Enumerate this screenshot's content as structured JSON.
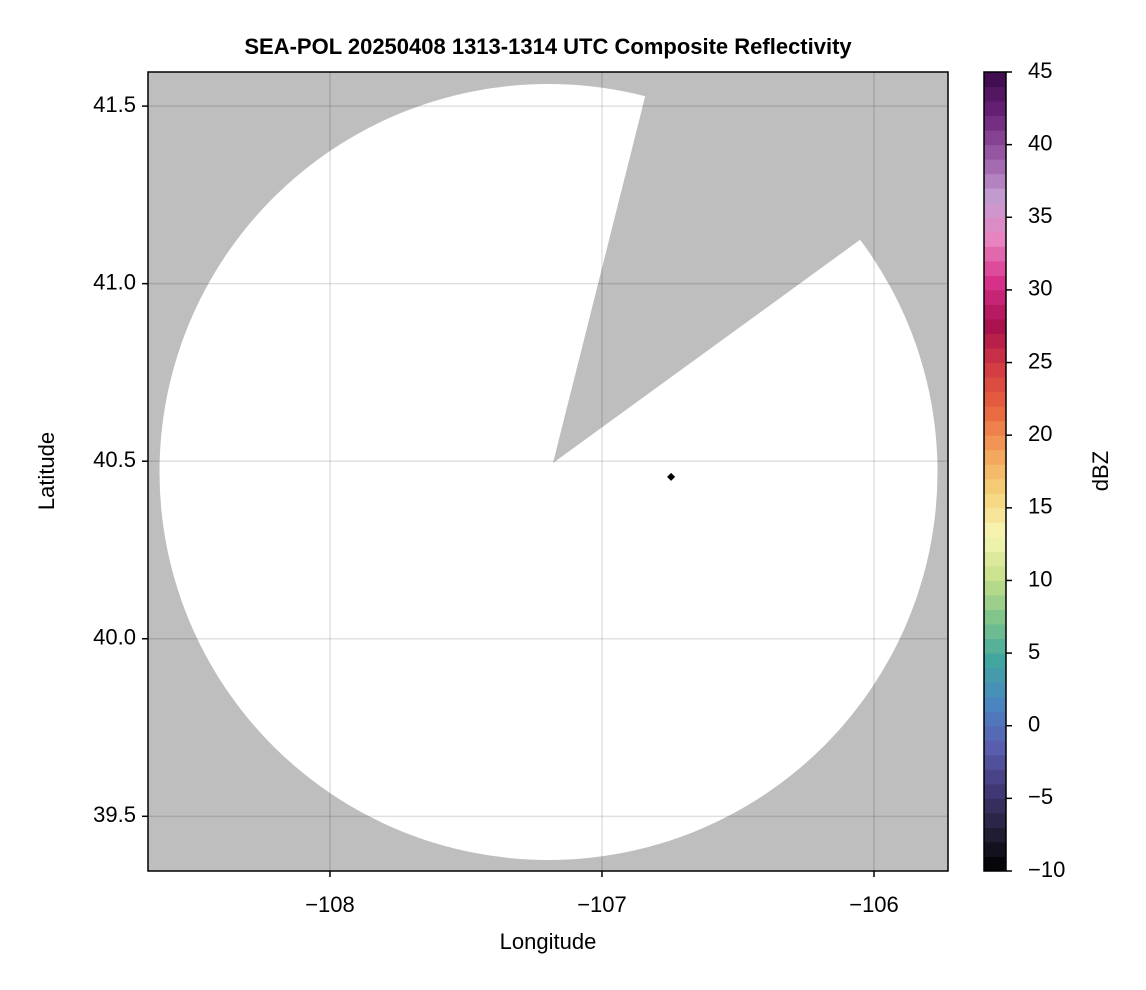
{
  "chart_data": {
    "type": "map",
    "title": "SEA-POL 20250408 1313-1314 UTC Composite Reflectivity",
    "xlabel": "Longitude",
    "ylabel": "Latitude",
    "xlim": [
      -108.669,
      -105.728
    ],
    "ylim": [
      39.346,
      41.596
    ],
    "xticks": [
      {
        "value": -108,
        "label": "−108"
      },
      {
        "value": -107,
        "label": "−107"
      },
      {
        "value": -106,
        "label": "−106"
      }
    ],
    "yticks": [
      {
        "value": 39.5,
        "label": "39.5"
      },
      {
        "value": 40.0,
        "label": "40.0"
      },
      {
        "value": 40.5,
        "label": "40.5"
      },
      {
        "value": 41.0,
        "label": "41.0"
      },
      {
        "value": 41.5,
        "label": "41.5"
      }
    ],
    "grid": true,
    "points": {
      "x": [
        -106.746
      ],
      "y": [
        40.456
      ],
      "color": "#000000"
    },
    "colorbar": {
      "label": "dBZ",
      "lim": [
        -10,
        45
      ],
      "ticks": [
        {
          "value": -10,
          "label": "−10"
        },
        {
          "value": -5,
          "label": "−5"
        },
        0,
        5,
        10,
        15,
        20,
        25,
        30,
        35,
        40,
        45
      ],
      "colors": [
        "#000000",
        "#25203a",
        "#433b7a",
        "#5a5fb0",
        "#4a86c0",
        "#42a5a0",
        "#7ec48a",
        "#c8e08c",
        "#f6f6b4",
        "#f6d27a",
        "#f2a05a",
        "#e8643e",
        "#d23a44",
        "#a8104e",
        "#d6308a",
        "#e882be",
        "#c49ed2",
        "#9a5aa6",
        "#6a2478",
        "#3a0a4a"
      ]
    }
  }
}
